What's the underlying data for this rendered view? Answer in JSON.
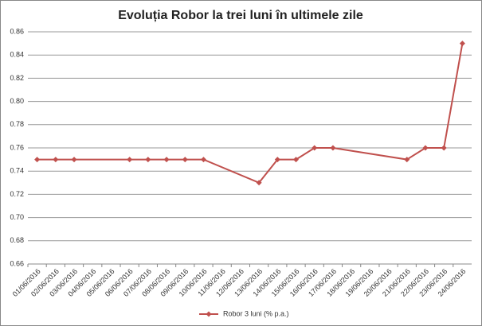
{
  "chart_data": {
    "type": "line",
    "title": "Evoluția Robor la trei luni în ultimele zile",
    "x": [
      "01/06/2016",
      "02/06/2016",
      "03/06/2016",
      "06/06/2016",
      "07/06/2016",
      "08/06/2016",
      "09/06/2016",
      "10/06/2016",
      "13/06/2016",
      "14/06/2016",
      "15/06/2016",
      "16/06/2016",
      "17/06/2016",
      "21/06/2016",
      "22/06/2016",
      "23/06/2016",
      "24/06/2016"
    ],
    "xticks": [
      "01/06/2016",
      "02/06/2016",
      "03/06/2016",
      "04/06/2016",
      "05/06/2016",
      "06/06/2016",
      "07/06/2016",
      "08/06/2016",
      "09/06/2016",
      "10/06/2016",
      "11/06/2016",
      "12/06/2016",
      "13/06/2016",
      "14/06/2016",
      "15/06/2016",
      "16/06/2016",
      "17/06/2016",
      "18/06/2016",
      "19/06/2016",
      "20/06/2016",
      "21/06/2016",
      "22/06/2016",
      "23/06/2016",
      "24/06/2016"
    ],
    "series": [
      {
        "name": "Robor 3 luni (% p.a.)",
        "color": "#c0504d",
        "values": [
          0.75,
          0.75,
          0.75,
          0.75,
          0.75,
          0.75,
          0.75,
          0.75,
          0.73,
          0.75,
          0.75,
          0.76,
          0.76,
          0.75,
          0.76,
          0.76,
          0.85
        ]
      }
    ],
    "ylim": [
      0.66,
      0.86
    ],
    "yticks": [
      0.66,
      0.68,
      {
        "value": 0.7,
        "label": "0.70"
      },
      0.72,
      0.74,
      0.76,
      0.78,
      {
        "value": 0.8,
        "label": "0.80"
      },
      0.82,
      0.84,
      0.86
    ],
    "grid": true,
    "legend": "bottom"
  }
}
